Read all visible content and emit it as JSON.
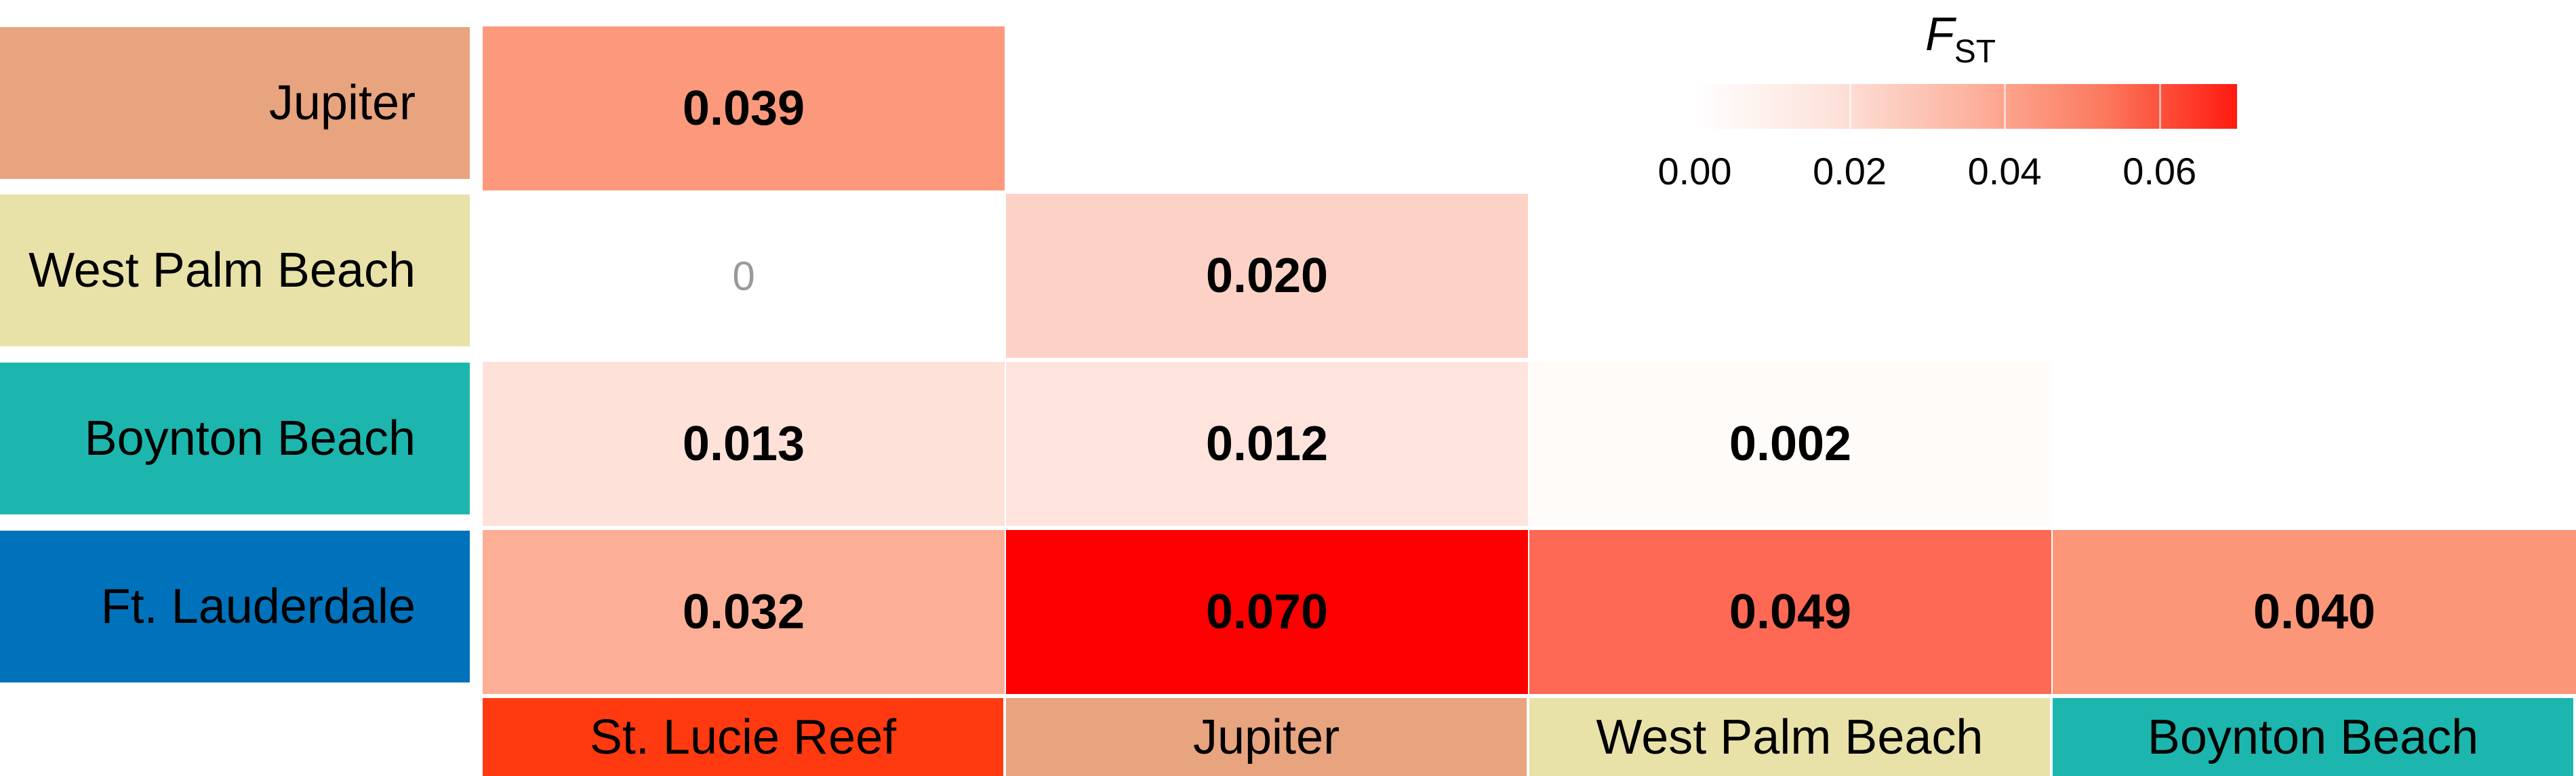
{
  "chart_data": {
    "type": "heatmap",
    "rows": [
      "Jupiter",
      "West Palm Beach",
      "Boynton Beach",
      "Ft. Lauderdale"
    ],
    "columns": [
      "St. Lucie Reef",
      "Jupiter",
      "West Palm Beach",
      "Boynton Beach"
    ],
    "cells": [
      [
        "0.039",
        null,
        null,
        null
      ],
      [
        "0",
        "0.020",
        null,
        null
      ],
      [
        "0.013",
        "0.012",
        "0.002",
        null
      ],
      [
        "0.032",
        "0.070",
        "0.049",
        "0.040"
      ]
    ],
    "values": [
      [
        0.039,
        null,
        null,
        null
      ],
      [
        0,
        0.02,
        null,
        null
      ],
      [
        0.013,
        0.012,
        0.002,
        null
      ],
      [
        0.032,
        0.07,
        0.049,
        0.04
      ]
    ],
    "legend": {
      "title_main": "F",
      "title_sub": "ST",
      "ticks": [
        "0.00",
        "0.02",
        "0.04",
        "0.06"
      ],
      "tick_values": [
        0.0,
        0.02,
        0.04,
        0.06
      ],
      "range": [
        0.0,
        0.07
      ]
    },
    "row_label_colors": [
      "#E8A37F",
      "#E8E2A8",
      "#1DB6AE",
      "#0072BB"
    ],
    "column_label_colors": [
      "#FF3A10",
      "#E8A37F",
      "#E8E2A8",
      "#1DB6AE"
    ]
  }
}
